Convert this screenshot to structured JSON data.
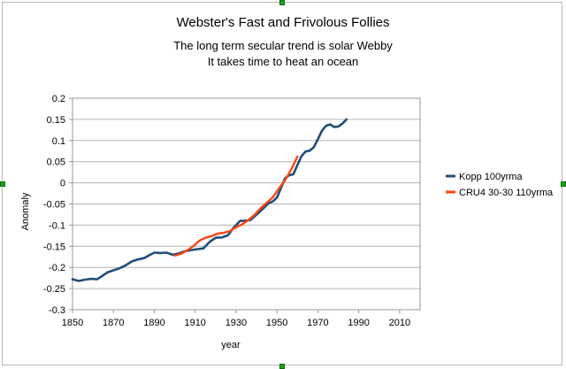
{
  "chart_data": {
    "type": "line",
    "title": "Webster's Fast and Frivolous Follies",
    "subtitle_lines": [
      "The long term secular trend is solar Webby",
      "It takes time to heat an ocean"
    ],
    "xlabel": "year",
    "ylabel": "Anomaly",
    "xlim": [
      1850,
      2020
    ],
    "ylim": [
      -0.3,
      0.2
    ],
    "x_ticks": [
      "1850",
      "1870",
      "1890",
      "1910",
      "1930",
      "1950",
      "1970",
      "1990",
      "2010"
    ],
    "y_ticks": [
      "0.2",
      "0.15",
      "0.1",
      "0.05",
      "0",
      "-0.05",
      "-0.1",
      "-0.15",
      "-0.2",
      "-0.25",
      "-0.3"
    ],
    "grid": "horizontal",
    "legend_position": "right",
    "series": [
      {
        "name": "Kopp 100yrma",
        "color": "#1f4e79",
        "x": [
          1850,
          1853,
          1856,
          1859,
          1862,
          1864,
          1867,
          1870,
          1873,
          1876,
          1879,
          1882,
          1885,
          1888,
          1890,
          1893,
          1896,
          1899,
          1902,
          1905,
          1908,
          1911,
          1914,
          1917,
          1920,
          1923,
          1926,
          1929,
          1932,
          1934,
          1937,
          1940,
          1943,
          1946,
          1948,
          1950,
          1952,
          1954,
          1956,
          1958,
          1960,
          1962,
          1964,
          1966,
          1968,
          1970,
          1972,
          1974,
          1976,
          1978,
          1980,
          1982,
          1984
        ],
        "y": [
          -0.228,
          -0.232,
          -0.229,
          -0.227,
          -0.228,
          -0.222,
          -0.212,
          -0.207,
          -0.202,
          -0.195,
          -0.186,
          -0.181,
          -0.178,
          -0.17,
          -0.165,
          -0.166,
          -0.165,
          -0.17,
          -0.167,
          -0.162,
          -0.159,
          -0.157,
          -0.155,
          -0.14,
          -0.13,
          -0.129,
          -0.124,
          -0.105,
          -0.09,
          -0.09,
          -0.088,
          -0.075,
          -0.062,
          -0.048,
          -0.044,
          -0.035,
          -0.012,
          0.011,
          0.018,
          0.02,
          0.042,
          0.063,
          0.074,
          0.076,
          0.084,
          0.103,
          0.123,
          0.135,
          0.138,
          0.132,
          0.133,
          0.14,
          0.15
        ]
      },
      {
        "name": "CRU4 30-30 110yrma",
        "color": "#ff4411",
        "x": [
          1900,
          1903,
          1906,
          1909,
          1912,
          1915,
          1918,
          1921,
          1924,
          1927,
          1930,
          1933,
          1936,
          1939,
          1942,
          1945,
          1948,
          1951,
          1954,
          1957,
          1960
        ],
        "y": [
          -0.172,
          -0.168,
          -0.16,
          -0.15,
          -0.137,
          -0.13,
          -0.126,
          -0.12,
          -0.118,
          -0.114,
          -0.105,
          -0.098,
          -0.088,
          -0.076,
          -0.06,
          -0.047,
          -0.034,
          -0.013,
          0.006,
          0.032,
          0.062
        ]
      }
    ]
  }
}
